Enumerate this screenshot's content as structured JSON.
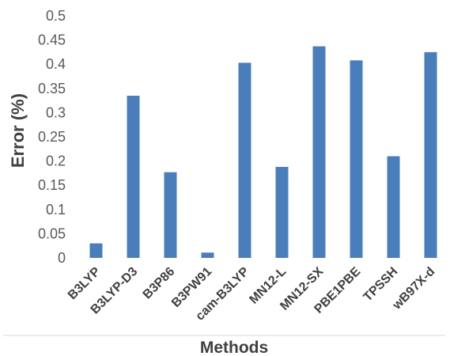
{
  "chart_data": {
    "type": "bar",
    "title": "",
    "xlabel": "Methods",
    "ylabel": "Error (%)",
    "ylim": [
      0,
      0.5
    ],
    "yticks": [
      "0",
      "0.05",
      "0.1",
      "0.15",
      "0.2",
      "0.25",
      "0.3",
      "0.35",
      "0.4",
      "0.45",
      "0.5"
    ],
    "categories": [
      "B3LYP",
      "B3LYP-D3",
      "B3P86",
      "B3PW91",
      "cam-B3LYP",
      "MN12-L",
      "MN12-SX",
      "PBE1PBE",
      "TPSSH",
      "wB97X-d"
    ],
    "values": [
      0.03,
      0.335,
      0.177,
      0.011,
      0.403,
      0.188,
      0.437,
      0.408,
      0.21,
      0.425
    ],
    "grid": false,
    "bar_color": "#4a7ebb"
  }
}
